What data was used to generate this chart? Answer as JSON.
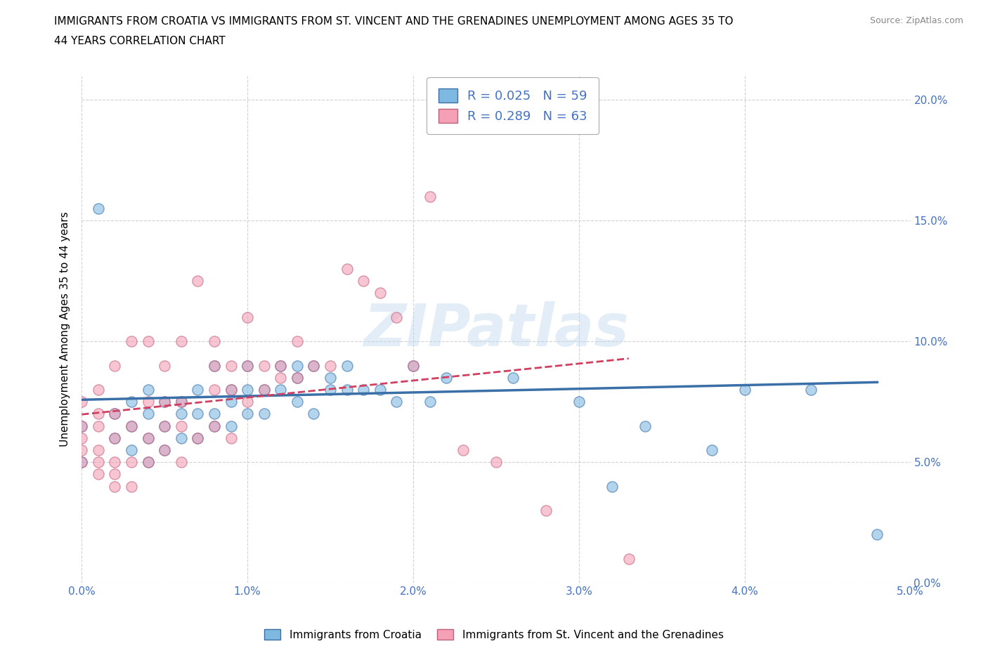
{
  "title_line1": "IMMIGRANTS FROM CROATIA VS IMMIGRANTS FROM ST. VINCENT AND THE GRENADINES UNEMPLOYMENT AMONG AGES 35 TO",
  "title_line2": "44 YEARS CORRELATION CHART",
  "source": "Source: ZipAtlas.com",
  "ylabel": "Unemployment Among Ages 35 to 44 years",
  "xlim": [
    0.0,
    0.05
  ],
  "ylim": [
    0.0,
    0.21
  ],
  "xticks": [
    0.0,
    0.01,
    0.02,
    0.03,
    0.04,
    0.05
  ],
  "yticks": [
    0.0,
    0.05,
    0.1,
    0.15,
    0.2
  ],
  "xtick_labels": [
    "0.0%",
    "1.0%",
    "2.0%",
    "3.0%",
    "4.0%",
    "5.0%"
  ],
  "ytick_labels_left": [
    "",
    "",
    "",
    "",
    ""
  ],
  "ytick_labels_right": [
    "0.0%",
    "5.0%",
    "10.0%",
    "15.0%",
    "20.0%"
  ],
  "color_croatia": "#7fb8e0",
  "color_stvincent": "#f4a0b5",
  "color_trendline_croatia": "#3a6fa8",
  "color_trendline_stvincent": "#d04060",
  "R_croatia": 0.025,
  "N_croatia": 59,
  "R_stvincent": 0.289,
  "N_stvincent": 63,
  "legend_label_croatia": "Immigrants from Croatia",
  "legend_label_stvincent": "Immigrants from St. Vincent and the Grenadines",
  "watermark": "ZIPatlas",
  "background_color": "#ffffff",
  "tick_color": "#4472c4",
  "croatia_x": [
    0.0,
    0.0,
    0.001,
    0.002,
    0.002,
    0.003,
    0.003,
    0.003,
    0.004,
    0.004,
    0.004,
    0.004,
    0.005,
    0.005,
    0.005,
    0.006,
    0.006,
    0.006,
    0.007,
    0.007,
    0.007,
    0.008,
    0.008,
    0.008,
    0.009,
    0.009,
    0.009,
    0.01,
    0.01,
    0.01,
    0.011,
    0.011,
    0.012,
    0.012,
    0.013,
    0.013,
    0.013,
    0.014,
    0.014,
    0.015,
    0.015,
    0.016,
    0.016,
    0.017,
    0.018,
    0.019,
    0.02,
    0.021,
    0.022,
    0.025,
    0.025,
    0.026,
    0.03,
    0.032,
    0.034,
    0.038,
    0.04,
    0.044,
    0.048
  ],
  "croatia_y": [
    0.065,
    0.05,
    0.155,
    0.07,
    0.06,
    0.055,
    0.065,
    0.075,
    0.05,
    0.06,
    0.07,
    0.08,
    0.055,
    0.065,
    0.075,
    0.06,
    0.07,
    0.075,
    0.06,
    0.07,
    0.08,
    0.065,
    0.07,
    0.09,
    0.065,
    0.075,
    0.08,
    0.07,
    0.08,
    0.09,
    0.07,
    0.08,
    0.08,
    0.09,
    0.075,
    0.085,
    0.09,
    0.07,
    0.09,
    0.08,
    0.085,
    0.08,
    0.09,
    0.08,
    0.08,
    0.075,
    0.09,
    0.075,
    0.085,
    0.195,
    0.2,
    0.085,
    0.075,
    0.04,
    0.065,
    0.055,
    0.08,
    0.08,
    0.02
  ],
  "stvincent_x": [
    0.0,
    0.0,
    0.0,
    0.0,
    0.0,
    0.001,
    0.001,
    0.001,
    0.001,
    0.001,
    0.001,
    0.002,
    0.002,
    0.002,
    0.002,
    0.002,
    0.002,
    0.003,
    0.003,
    0.003,
    0.003,
    0.004,
    0.004,
    0.004,
    0.004,
    0.005,
    0.005,
    0.005,
    0.005,
    0.006,
    0.006,
    0.006,
    0.006,
    0.007,
    0.007,
    0.008,
    0.008,
    0.008,
    0.008,
    0.009,
    0.009,
    0.009,
    0.01,
    0.01,
    0.01,
    0.011,
    0.011,
    0.012,
    0.012,
    0.013,
    0.013,
    0.014,
    0.015,
    0.016,
    0.017,
    0.018,
    0.019,
    0.02,
    0.021,
    0.023,
    0.025,
    0.028,
    0.033
  ],
  "stvincent_y": [
    0.05,
    0.055,
    0.06,
    0.065,
    0.075,
    0.045,
    0.05,
    0.055,
    0.065,
    0.07,
    0.08,
    0.04,
    0.045,
    0.05,
    0.06,
    0.07,
    0.09,
    0.04,
    0.05,
    0.065,
    0.1,
    0.05,
    0.06,
    0.075,
    0.1,
    0.055,
    0.065,
    0.075,
    0.09,
    0.05,
    0.065,
    0.075,
    0.1,
    0.06,
    0.125,
    0.065,
    0.08,
    0.09,
    0.1,
    0.06,
    0.08,
    0.09,
    0.075,
    0.09,
    0.11,
    0.08,
    0.09,
    0.085,
    0.09,
    0.085,
    0.1,
    0.09,
    0.09,
    0.13,
    0.125,
    0.12,
    0.11,
    0.09,
    0.16,
    0.055,
    0.05,
    0.03,
    0.01
  ]
}
